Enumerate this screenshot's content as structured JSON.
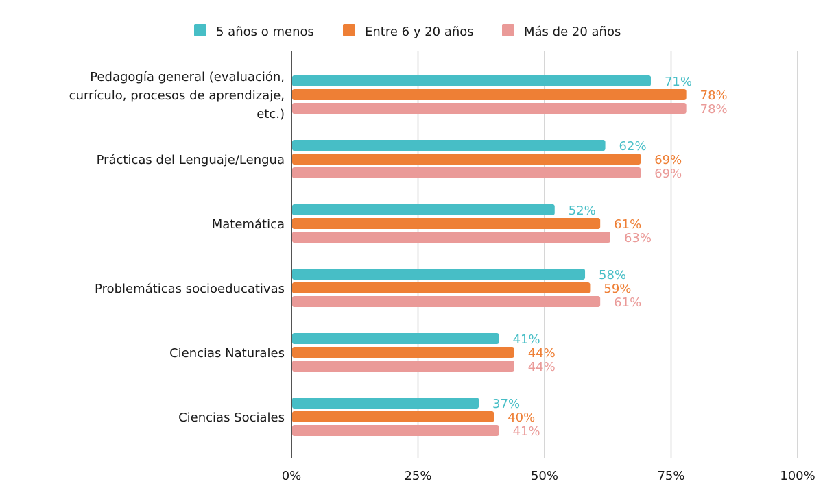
{
  "chart_data": {
    "type": "bar",
    "orientation": "horizontal",
    "categories": [
      [
        "Pedagogía general (evaluación,",
        "currículo, procesos de aprendizaje,",
        "etc.)"
      ],
      [
        "Prácticas del Lenguaje/Lengua"
      ],
      [
        "Matemática"
      ],
      [
        "Problemáticas socioeducativas"
      ],
      [
        "Ciencias Naturales"
      ],
      [
        "Ciencias Sociales"
      ]
    ],
    "series": [
      {
        "name": "5 años o menos",
        "color": "#47BEC6",
        "values": [
          71,
          62,
          52,
          58,
          41,
          37
        ],
        "labels": [
          "71%",
          "62%",
          "52%",
          "58%",
          "41%",
          "37%"
        ]
      },
      {
        "name": "Entre 6 y 20 años",
        "color": "#EE7F35",
        "values": [
          78,
          69,
          61,
          59,
          44,
          40
        ],
        "labels": [
          "78%",
          "69%",
          "61%",
          "59%",
          "44%",
          "40%"
        ]
      },
      {
        "name": "Más de 20 años",
        "color": "#EA9A98",
        "values": [
          78,
          69,
          63,
          61,
          44,
          41
        ],
        "labels": [
          "78%",
          "69%",
          "63%",
          "61%",
          "44%",
          "41%"
        ]
      }
    ],
    "xlim": [
      0,
      100
    ],
    "xticks": [
      0,
      25,
      50,
      75,
      100
    ],
    "xtick_labels": [
      "0%",
      "25%",
      "50%",
      "75%",
      "100%"
    ],
    "grid": true,
    "legend_position": "top-center",
    "title": "",
    "xlabel": "",
    "ylabel": ""
  }
}
